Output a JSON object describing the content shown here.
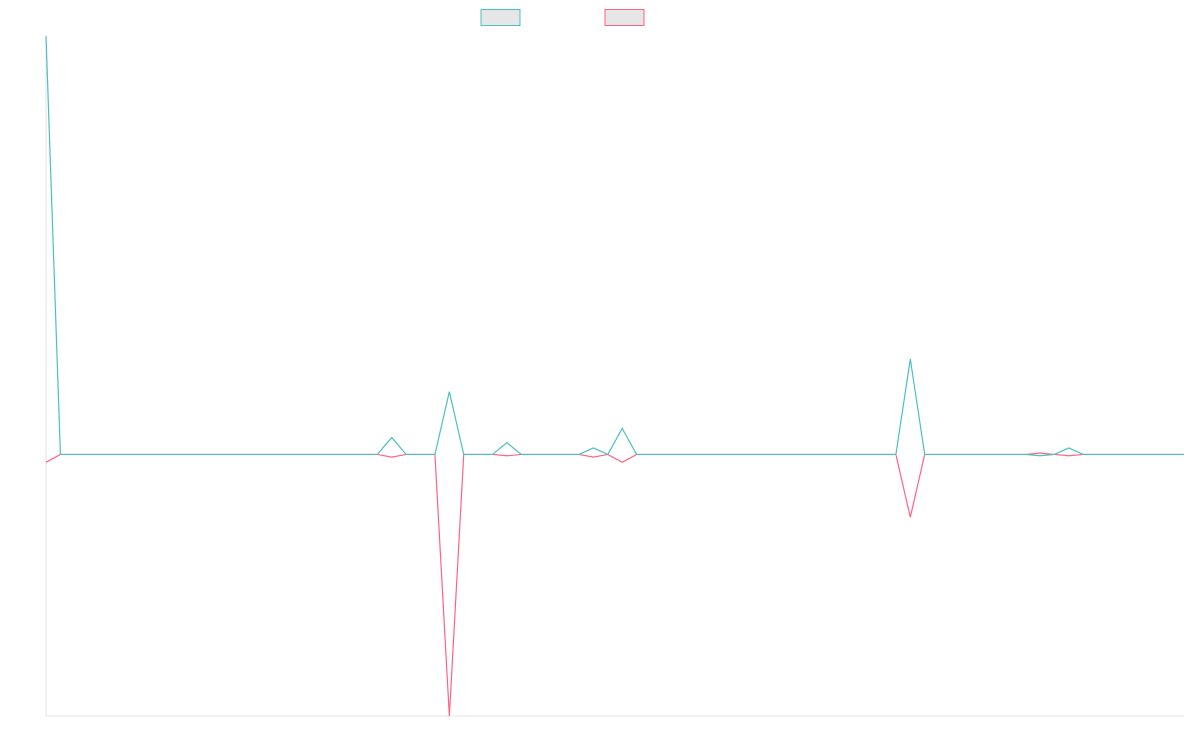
{
  "chart_data": {
    "type": "line",
    "title": "",
    "xlabel": "",
    "ylabel": "",
    "grid": false,
    "legend": "top-center",
    "xlim": [
      0,
      79
    ],
    "ylim": [
      -100,
      160
    ],
    "x": [
      0,
      1,
      2,
      3,
      4,
      5,
      6,
      7,
      8,
      9,
      10,
      11,
      12,
      13,
      14,
      15,
      16,
      17,
      18,
      19,
      20,
      21,
      22,
      23,
      24,
      25,
      26,
      27,
      28,
      29,
      30,
      31,
      32,
      33,
      34,
      35,
      36,
      37,
      38,
      39,
      40,
      41,
      42,
      43,
      44,
      45,
      46,
      47,
      48,
      49,
      50,
      51,
      52,
      53,
      54,
      55,
      56,
      57,
      58,
      59,
      60,
      61,
      62,
      63,
      64,
      65,
      66,
      67,
      68,
      69,
      70,
      71,
      72,
      73,
      74,
      75,
      76,
      77,
      78,
      79
    ],
    "series": [
      {
        "color": "#4bc0c0",
        "values": [
          160,
          0,
          0,
          0,
          0,
          0,
          0,
          0,
          0,
          0,
          0,
          0,
          0,
          0,
          0,
          0,
          0,
          0,
          0,
          0,
          0,
          0,
          0,
          0,
          6.5,
          0,
          0,
          0,
          24,
          0,
          0,
          0,
          4.5,
          0,
          0,
          0,
          0,
          0,
          2.5,
          0,
          10,
          0,
          0,
          0,
          0,
          0,
          0,
          0,
          0,
          0,
          0,
          0,
          0,
          0,
          0,
          0,
          0,
          0,
          0,
          0,
          36.5,
          0,
          0,
          0,
          0,
          0,
          0,
          0,
          0,
          -0.5,
          0,
          2.5,
          0,
          0,
          0,
          0,
          0,
          0,
          0,
          0
        ]
      },
      {
        "color": "#ff6384",
        "values": [
          -3,
          0,
          0,
          0,
          0,
          0,
          0,
          0,
          0,
          0,
          0,
          0,
          0,
          0,
          0,
          0,
          0,
          0,
          0,
          0,
          0,
          0,
          0,
          0,
          -1,
          0,
          0,
          0,
          -100,
          0,
          0,
          0,
          -0.5,
          0,
          0,
          0,
          0,
          0,
          -1,
          0,
          -3,
          0,
          0,
          0,
          0,
          0,
          0,
          0,
          0,
          0,
          0,
          0,
          0,
          0,
          0,
          0,
          0,
          0,
          0,
          0,
          -24,
          0,
          0,
          0,
          0,
          0,
          0,
          0,
          0,
          0.5,
          0,
          -0.5,
          0,
          0,
          0,
          0,
          0,
          0,
          0,
          0
        ]
      }
    ]
  }
}
